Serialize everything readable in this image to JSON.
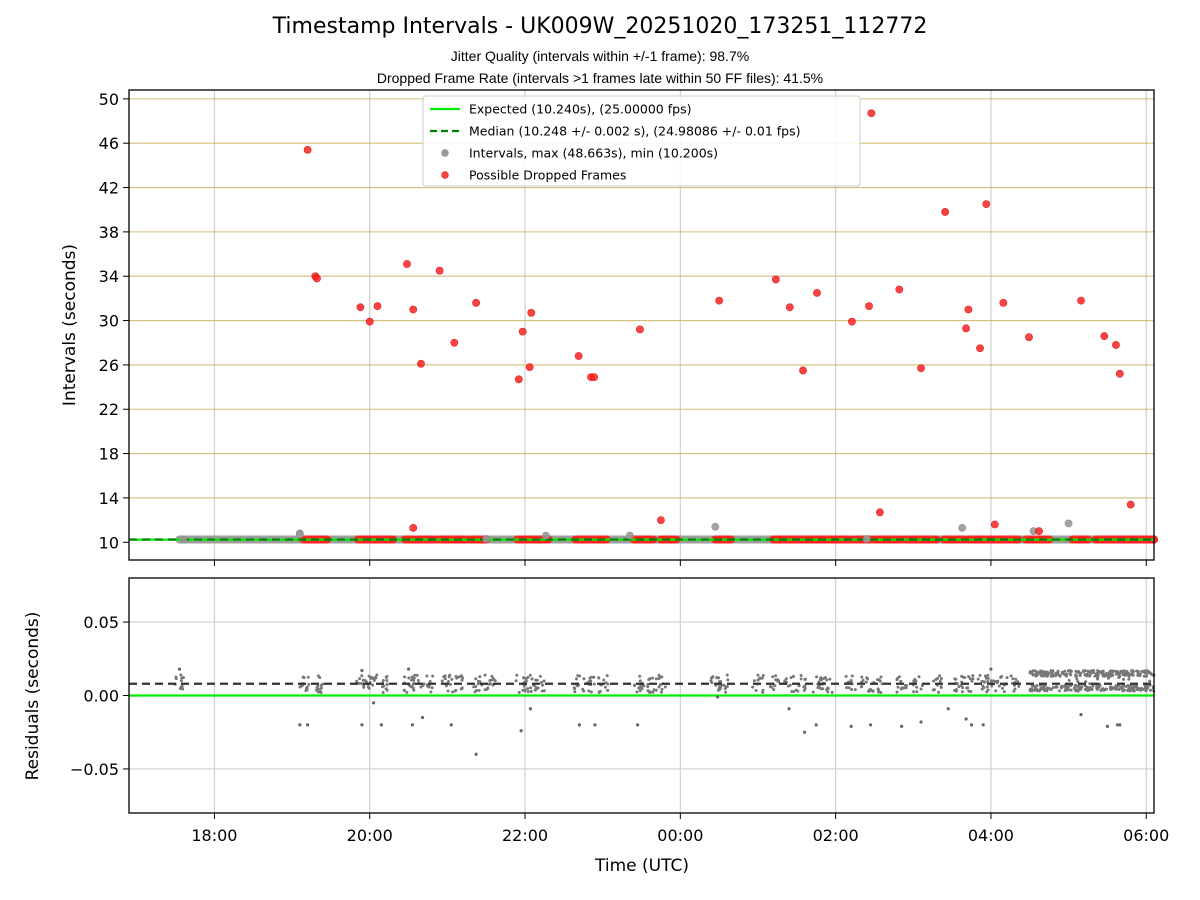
{
  "chart_data": [
    {
      "type": "scatter",
      "title": "Timestamp Intervals - UK009W_20251020_173251_112772",
      "subtitles": [
        "Jitter Quality (intervals within +/-1 frame): 98.7%",
        "Dropped Frame Rate (intervals >1 frames late within 50 FF files): 41.5%"
      ],
      "xlabel": "",
      "ylabel": "Intervals (seconds)",
      "xlim_hours": [
        16.9,
        30.1
      ],
      "ylim": [
        8.4,
        50.8
      ],
      "yticks": [
        10,
        14,
        18,
        22,
        26,
        30,
        34,
        38,
        42,
        46,
        50
      ],
      "ytick_labels": [
        "10",
        "14",
        "18",
        "22",
        "26",
        "30",
        "34",
        "38",
        "42",
        "46",
        "50"
      ],
      "xticks_hours": [
        18,
        20,
        22,
        24,
        26,
        28,
        30
      ],
      "grid": true,
      "legend_position": "top-center",
      "legend": [
        "Expected (10.240s), (25.00000 fps)",
        "Median (10.248 +/- 0.002 s), (24.98086 +/- 0.01 fps)",
        "Intervals, max (48.663s), min (10.200s)",
        "Possible Dropped Frames"
      ],
      "colors": {
        "expected": "#00ee00",
        "median": "#008000",
        "intervals": "#999999",
        "dropped": "#ff2222",
        "threshold_grid": "#c8a850"
      },
      "expected": 10.24,
      "median": 10.248,
      "interval_points": [
        [
          17.6,
          10.24
        ],
        [
          19.1,
          10.8
        ],
        [
          19.1,
          10.7
        ],
        [
          22.27,
          10.6
        ],
        [
          23.35,
          10.6
        ],
        [
          24.45,
          11.4
        ],
        [
          27.63,
          11.3
        ],
        [
          28.55,
          11.0
        ],
        [
          29.0,
          11.7
        ],
        [
          26.4,
          10.3
        ],
        [
          21.5,
          10.3
        ]
      ],
      "dropped_points": [
        [
          19.2,
          45.4
        ],
        [
          19.3,
          34.0
        ],
        [
          19.32,
          33.8
        ],
        [
          19.88,
          31.2
        ],
        [
          20.0,
          29.9
        ],
        [
          20.1,
          31.3
        ],
        [
          20.48,
          35.1
        ],
        [
          20.56,
          31.0
        ],
        [
          20.56,
          11.3
        ],
        [
          20.66,
          26.1
        ],
        [
          20.9,
          34.5
        ],
        [
          21.09,
          28.0
        ],
        [
          21.37,
          31.6
        ],
        [
          21.92,
          24.7
        ],
        [
          21.97,
          29.0
        ],
        [
          22.06,
          25.8
        ],
        [
          22.08,
          30.7
        ],
        [
          22.69,
          26.8
        ],
        [
          22.85,
          24.9
        ],
        [
          22.89,
          24.9
        ],
        [
          23.48,
          29.2
        ],
        [
          23.75,
          12.0
        ],
        [
          24.5,
          31.8
        ],
        [
          25.23,
          33.7
        ],
        [
          25.41,
          31.2
        ],
        [
          25.58,
          25.5
        ],
        [
          25.76,
          32.5
        ],
        [
          26.21,
          29.9
        ],
        [
          26.43,
          31.3
        ],
        [
          26.46,
          48.7
        ],
        [
          26.57,
          12.7
        ],
        [
          26.82,
          32.8
        ],
        [
          27.1,
          25.7
        ],
        [
          27.41,
          39.8
        ],
        [
          27.68,
          29.3
        ],
        [
          27.71,
          31.0
        ],
        [
          27.86,
          27.5
        ],
        [
          27.94,
          40.5
        ],
        [
          28.05,
          11.6
        ],
        [
          28.16,
          31.6
        ],
        [
          28.49,
          28.5
        ],
        [
          28.62,
          11.0
        ],
        [
          29.16,
          31.8
        ],
        [
          29.46,
          28.6
        ],
        [
          29.61,
          27.8
        ],
        [
          29.66,
          25.2
        ],
        [
          29.8,
          13.4
        ]
      ],
      "dropped_bands": [
        [
          19.15,
          19.45
        ],
        [
          19.85,
          20.3
        ],
        [
          20.45,
          20.85
        ],
        [
          20.9,
          21.25
        ],
        [
          21.3,
          21.5
        ],
        [
          21.9,
          22.3
        ],
        [
          22.65,
          23.05
        ],
        [
          23.4,
          23.65
        ],
        [
          23.75,
          23.95
        ],
        [
          24.45,
          24.65
        ],
        [
          25.2,
          26.2
        ],
        [
          26.25,
          26.45
        ],
        [
          26.5,
          26.85
        ],
        [
          26.9,
          27.1
        ],
        [
          27.1,
          27.3
        ],
        [
          27.4,
          27.65
        ],
        [
          27.7,
          27.9
        ],
        [
          27.9,
          28.35
        ],
        [
          28.45,
          28.75
        ],
        [
          29.05,
          29.25
        ],
        [
          29.35,
          29.9
        ],
        [
          29.9,
          30.1
        ]
      ]
    },
    {
      "type": "scatter",
      "title": "",
      "xlabel": "Time (UTC)",
      "ylabel": "Residuals (seconds)",
      "xlim_hours": [
        16.9,
        30.1
      ],
      "ylim": [
        -0.08,
        0.08
      ],
      "yticks": [
        -0.05,
        0.0,
        0.05
      ],
      "ytick_labels": [
        "−0.05",
        "0.00",
        "0.05"
      ],
      "xticks_hours": [
        18,
        20,
        22,
        24,
        26,
        28,
        30
      ],
      "xtick_labels": [
        "18:00",
        "20:00",
        "22:00",
        "00:00",
        "02:00",
        "04:00",
        "06:00"
      ],
      "grid": true,
      "expected_residual": 0.0,
      "median_residual": 0.008,
      "residual_clusters": [
        17.55,
        19.15,
        19.35,
        19.9,
        20.05,
        20.2,
        20.5,
        20.6,
        20.75,
        21.0,
        21.15,
        21.4,
        21.55,
        21.95,
        22.05,
        22.2,
        22.7,
        22.85,
        23.0,
        23.45,
        23.6,
        23.75,
        24.45,
        24.55,
        25.0,
        25.2,
        25.4,
        25.55,
        25.75,
        25.9,
        26.2,
        26.4,
        26.55,
        26.85,
        27.05,
        27.3,
        27.6,
        27.7,
        27.9,
        28.0,
        28.15,
        28.3
      ],
      "residual_outliers": [
        [
          17.55,
          0.018
        ],
        [
          19.1,
          -0.02
        ],
        [
          19.2,
          -0.02
        ],
        [
          19.9,
          0.017
        ],
        [
          19.9,
          -0.02
        ],
        [
          20.05,
          -0.005
        ],
        [
          20.15,
          -0.02
        ],
        [
          20.5,
          0.018
        ],
        [
          20.55,
          -0.02
        ],
        [
          20.68,
          -0.015
        ],
        [
          21.05,
          -0.02
        ],
        [
          21.37,
          -0.04
        ],
        [
          21.95,
          -0.024
        ],
        [
          22.07,
          -0.009
        ],
        [
          22.7,
          -0.02
        ],
        [
          22.9,
          -0.02
        ],
        [
          23.45,
          -0.02
        ],
        [
          24.48,
          -0.001
        ],
        [
          25.4,
          -0.009
        ],
        [
          25.6,
          -0.025
        ],
        [
          25.75,
          -0.02
        ],
        [
          26.2,
          -0.021
        ],
        [
          26.45,
          -0.02
        ],
        [
          26.85,
          -0.021
        ],
        [
          27.1,
          -0.018
        ],
        [
          27.45,
          -0.009
        ],
        [
          27.68,
          -0.016
        ],
        [
          27.75,
          -0.02
        ],
        [
          27.9,
          -0.02
        ],
        [
          28.0,
          0.018
        ],
        [
          29.16,
          -0.013
        ],
        [
          29.5,
          -0.021
        ],
        [
          29.63,
          -0.02
        ],
        [
          29.66,
          -0.02
        ]
      ],
      "dense_band": {
        "x": [
          28.5,
          30.1
        ],
        "low": 0.003,
        "high": 0.017
      }
    }
  ]
}
